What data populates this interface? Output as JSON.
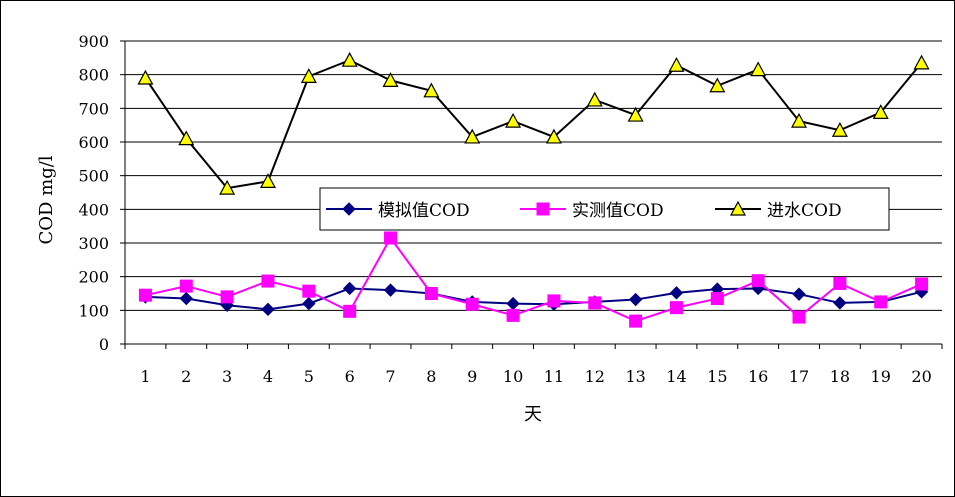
{
  "chart_data": {
    "type": "line",
    "title": "",
    "xlabel": "天",
    "ylabel": "COD mg/l",
    "ylim": [
      0,
      900
    ],
    "yticks": [
      0,
      100,
      200,
      300,
      400,
      500,
      600,
      700,
      800,
      900
    ],
    "grid": "horizontal",
    "legend_position": "center",
    "categories": [
      "1",
      "2",
      "3",
      "4",
      "5",
      "6",
      "7",
      "8",
      "9",
      "10",
      "11",
      "12",
      "13",
      "14",
      "15",
      "16",
      "17",
      "18",
      "19",
      "20"
    ],
    "series": [
      {
        "name": "模拟值COD",
        "color": "#000080",
        "marker": "diamond",
        "values": [
          140,
          135,
          115,
          103,
          120,
          165,
          160,
          150,
          125,
          120,
          118,
          125,
          132,
          152,
          163,
          165,
          148,
          122,
          125,
          155
        ]
      },
      {
        "name": "实测值COD",
        "color": "#FF00FF",
        "marker": "square",
        "values": [
          145,
          172,
          140,
          187,
          157,
          97,
          315,
          150,
          118,
          85,
          128,
          122,
          68,
          108,
          135,
          188,
          80,
          180,
          125,
          178
        ]
      },
      {
        "name": "进水COD",
        "color": "#000000",
        "marker": "triangle",
        "marker_fill": "#FFFF00",
        "values": [
          790,
          610,
          463,
          483,
          795,
          843,
          783,
          752,
          615,
          662,
          615,
          725,
          680,
          828,
          767,
          815,
          662,
          635,
          688,
          835
        ]
      }
    ]
  }
}
